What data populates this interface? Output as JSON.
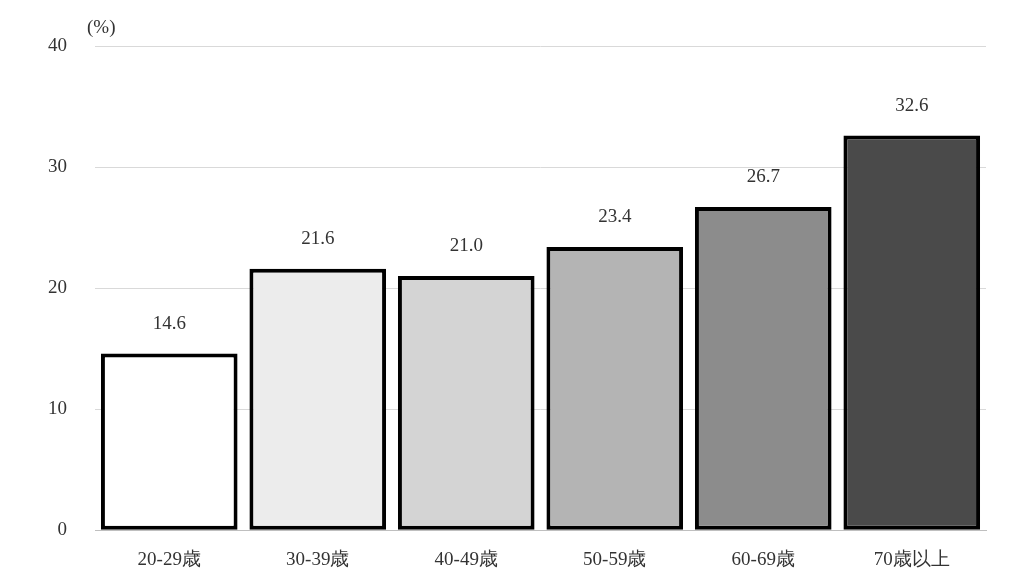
{
  "chart_data": {
    "type": "bar",
    "y_label": "(%)",
    "categories": [
      "20-29歳",
      "30-39歳",
      "40-49歳",
      "50-59歳",
      "60-69歳",
      "70歳以上"
    ],
    "values": [
      14.6,
      21.6,
      21.0,
      23.4,
      26.7,
      32.6
    ],
    "value_labels": [
      "14.6",
      "21.6",
      "21.0",
      "23.4",
      "26.7",
      "32.6"
    ],
    "colors": [
      "#ffffff",
      "#ececec",
      "#d4d4d4",
      "#b4b4b4",
      "#8c8c8c",
      "#4a4a4a"
    ],
    "ylim": [
      0,
      40
    ],
    "yticks": [
      0,
      10,
      20,
      30,
      40
    ],
    "grid": true,
    "data_labels": true
  }
}
